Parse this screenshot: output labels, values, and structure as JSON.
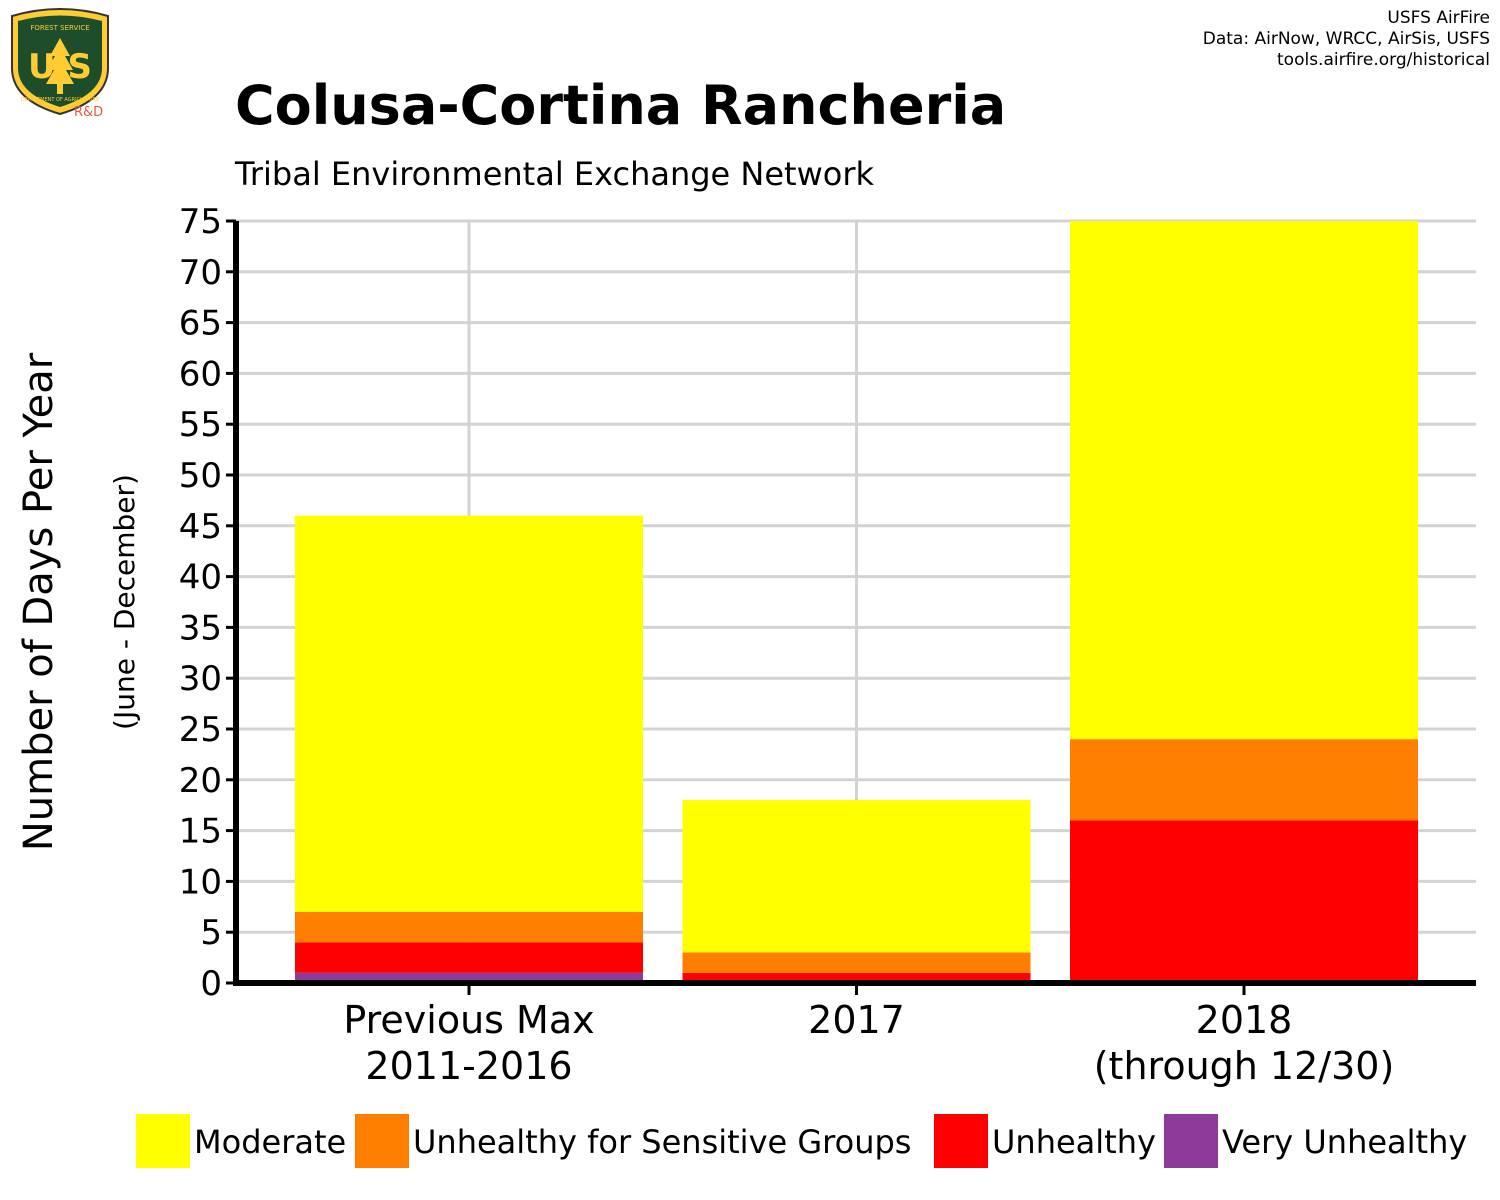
{
  "credits": {
    "line1": "USFS AirFire",
    "line2": "Data: AirNow, WRCC, AirSis, USFS",
    "line3": "tools.airfire.org/historical"
  },
  "logo": {
    "top_text": "FOREST SERVICE",
    "letters": "U S",
    "bottom_text": "DEPARTMENT OF AGRICULTURE",
    "rd": "R&D"
  },
  "chart_data": {
    "type": "bar",
    "stacked": true,
    "title": "Colusa-Cortina Rancheria",
    "subtitle": "Tribal Environmental Exchange Network",
    "ylabel": "Number of Days Per Year",
    "ylabel_sub": "(June - December)",
    "ylim": [
      0,
      75
    ],
    "yticks": [
      0,
      5,
      10,
      15,
      20,
      25,
      30,
      35,
      40,
      45,
      50,
      55,
      60,
      65,
      70,
      75
    ],
    "grid": true,
    "legend_position": "bottom",
    "categories": [
      [
        "Previous Max",
        "2011-2016"
      ],
      [
        "2017"
      ],
      [
        "2018",
        "(through 12/30)"
      ]
    ],
    "series": [
      {
        "name": "Very Unhealthy",
        "color": "#8e3a9b",
        "values": [
          1,
          0,
          0
        ]
      },
      {
        "name": "Unhealthy",
        "color": "#ff0000",
        "values": [
          3,
          1,
          16
        ]
      },
      {
        "name": "Unhealthy for Sensitive Groups",
        "color": "#ff7e00",
        "values": [
          3,
          2,
          8
        ]
      },
      {
        "name": "Moderate",
        "color": "#ffff00",
        "values": [
          39,
          15,
          51
        ]
      }
    ],
    "legend_order": [
      "Moderate",
      "Unhealthy for Sensitive Groups",
      "Unhealthy",
      "Very Unhealthy"
    ]
  }
}
